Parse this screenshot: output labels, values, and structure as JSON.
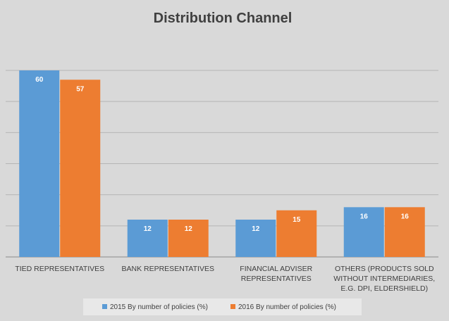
{
  "chart_data": {
    "type": "bar",
    "title": "Distribution Channel",
    "categories": [
      [
        "TIED REPRESENTATIVES"
      ],
      [
        "BANK REPRESENTATIVES"
      ],
      [
        "FINANCIAL ADVISER",
        "REPRESENTATIVES"
      ],
      [
        "OTHERS (PRODUCTS SOLD",
        "WITHOUT INTERMEDIARIES,",
        "E.G. DPI, ELDERSHIELD)"
      ]
    ],
    "series": [
      {
        "name": "2015 By number of policies (%)",
        "color": "#5b9bd5",
        "values": [
          60,
          12,
          12,
          16
        ]
      },
      {
        "name": "2016 By number of policies (%)",
        "color": "#ed7d31",
        "values": [
          57,
          12,
          15,
          16
        ]
      }
    ],
    "ylim": [
      0,
      60
    ],
    "grid": true,
    "legend_position": "bottom",
    "background_color": "#d9d9d9"
  }
}
